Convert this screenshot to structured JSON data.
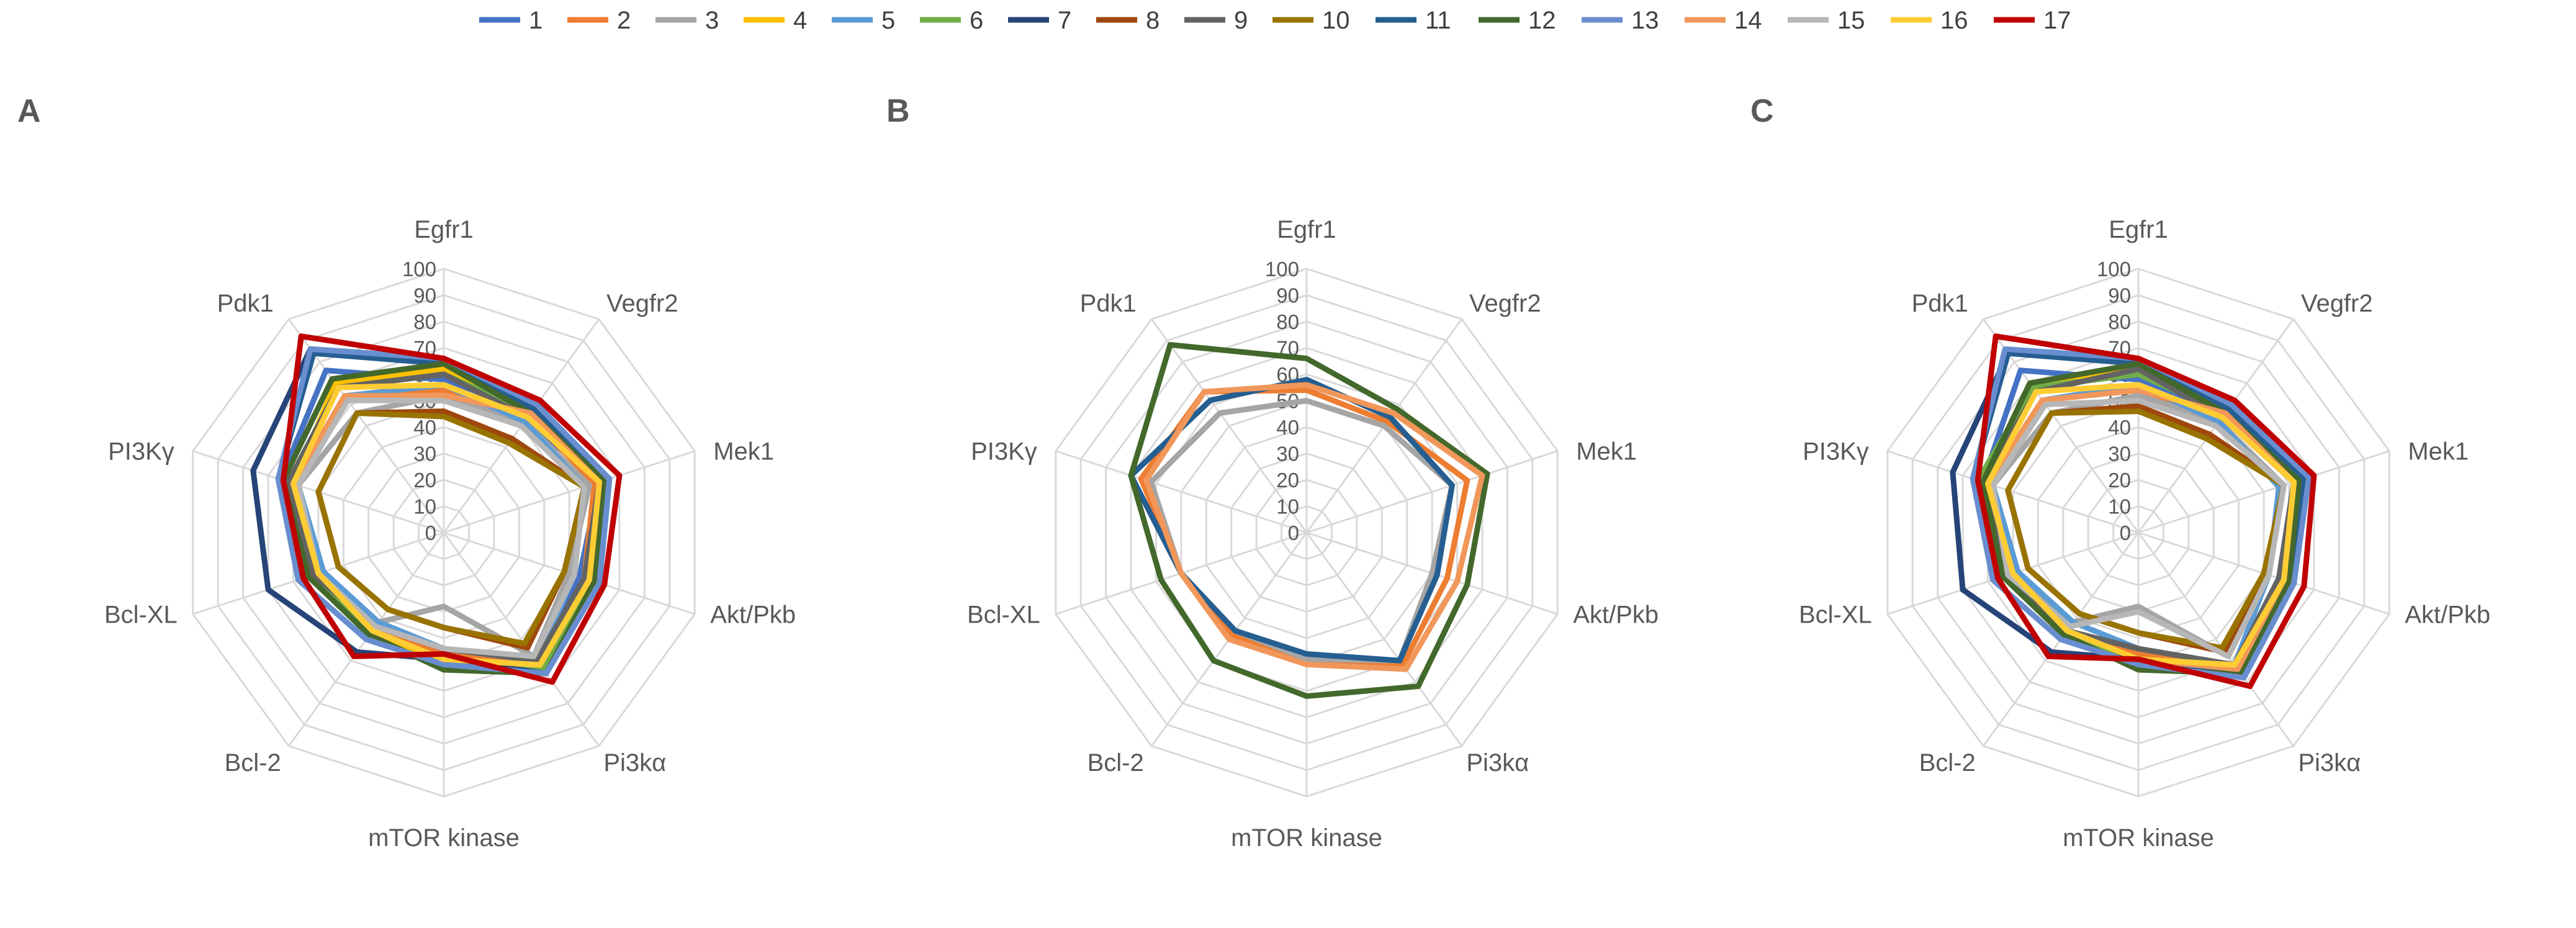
{
  "legend": {
    "entries": [
      {
        "label": "1",
        "color": "#4472C4"
      },
      {
        "label": "2",
        "color": "#ED7D31"
      },
      {
        "label": "3",
        "color": "#A5A5A5"
      },
      {
        "label": "4",
        "color": "#FFC000"
      },
      {
        "label": "5",
        "color": "#5B9BD5"
      },
      {
        "label": "6",
        "color": "#70AD47"
      },
      {
        "label": "7",
        "color": "#264478"
      },
      {
        "label": "8",
        "color": "#9E480E"
      },
      {
        "label": "9",
        "color": "#636363"
      },
      {
        "label": "10",
        "color": "#997300"
      },
      {
        "label": "11",
        "color": "#255E91"
      },
      {
        "label": "12",
        "color": "#43682B"
      },
      {
        "label": "13",
        "color": "#698ED0"
      },
      {
        "label": "14",
        "color": "#F1975A"
      },
      {
        "label": "15",
        "color": "#B7B7B7"
      },
      {
        "label": "16",
        "color": "#FFCD33"
      },
      {
        "label": "17",
        "color": "#C00000"
      }
    ]
  },
  "chart_data": [
    {
      "type": "radar",
      "panel": "A",
      "categories": [
        "Egfr1",
        "Vegfr2",
        "Mek1",
        "Akt/Pkb",
        "Pi3kα",
        "mTOR kinase",
        "Bcl-2",
        "Bcl-XL",
        "PI3Kγ",
        "Pdk1"
      ],
      "rlim": [
        0,
        100
      ],
      "ticks": [
        "0",
        "10",
        "20",
        "30",
        "40",
        "50",
        "60",
        "70",
        "80",
        "90",
        "100"
      ],
      "series": [
        {
          "name": "1",
          "values": [
            58,
            53,
            62,
            54,
            60,
            44,
            44,
            52,
            65,
            76
          ]
        },
        {
          "name": "2",
          "values": [
            54,
            55,
            60,
            56,
            62,
            46,
            46,
            48,
            62,
            62
          ]
        },
        {
          "name": "3",
          "values": [
            52,
            52,
            58,
            50,
            58,
            28,
            42,
            50,
            58,
            56
          ]
        },
        {
          "name": "4",
          "values": [
            62,
            58,
            66,
            60,
            64,
            50,
            46,
            50,
            60,
            70
          ]
        },
        {
          "name": "5",
          "values": [
            56,
            52,
            56,
            52,
            60,
            44,
            42,
            48,
            58,
            64
          ]
        },
        {
          "name": "6",
          "values": [
            60,
            56,
            62,
            58,
            64,
            52,
            48,
            52,
            62,
            68
          ]
        },
        {
          "name": "7",
          "values": [
            66,
            58,
            66,
            62,
            66,
            48,
            56,
            70,
            76,
            86
          ]
        },
        {
          "name": "8",
          "values": [
            46,
            44,
            56,
            48,
            54,
            36,
            36,
            42,
            50,
            56
          ]
        },
        {
          "name": "9",
          "values": [
            60,
            54,
            62,
            56,
            60,
            44,
            44,
            52,
            62,
            68
          ]
        },
        {
          "name": "10",
          "values": [
            44,
            42,
            56,
            48,
            52,
            36,
            36,
            42,
            50,
            56
          ]
        },
        {
          "name": "11",
          "values": [
            64,
            58,
            66,
            62,
            66,
            50,
            50,
            58,
            66,
            84
          ]
        },
        {
          "name": "12",
          "values": [
            64,
            56,
            64,
            60,
            66,
            52,
            48,
            54,
            64,
            72
          ]
        },
        {
          "name": "13",
          "values": [
            66,
            60,
            66,
            62,
            66,
            50,
            50,
            58,
            66,
            86
          ]
        },
        {
          "name": "14",
          "values": [
            52,
            56,
            62,
            58,
            62,
            48,
            46,
            50,
            60,
            64
          ]
        },
        {
          "name": "15",
          "values": [
            50,
            50,
            56,
            52,
            58,
            44,
            44,
            50,
            58,
            62
          ]
        },
        {
          "name": "16",
          "values": [
            56,
            54,
            62,
            58,
            62,
            48,
            46,
            50,
            60,
            68
          ]
        },
        {
          "name": "17",
          "values": [
            66,
            62,
            70,
            64,
            70,
            46,
            58,
            56,
            64,
            92
          ]
        }
      ]
    },
    {
      "type": "radar",
      "panel": "B",
      "categories": [
        "Egfr1",
        "Vegfr2",
        "Mek1",
        "Akt/Pkb",
        "Pi3kα",
        "mTOR kinase",
        "Bcl-2",
        "Bcl-XL",
        "PI3Kγ",
        "Pdk1"
      ],
      "rlim": [
        0,
        100
      ],
      "ticks": [
        "0",
        "10",
        "20",
        "30",
        "40",
        "50",
        "60",
        "70",
        "80",
        "90",
        "100"
      ],
      "series": [
        {
          "name": "2",
          "values": [
            54,
            52,
            64,
            56,
            62,
            50,
            48,
            50,
            66,
            66
          ]
        },
        {
          "name": "3",
          "values": [
            50,
            50,
            58,
            50,
            60,
            48,
            46,
            50,
            62,
            56
          ]
        },
        {
          "name": "11",
          "values": [
            58,
            54,
            58,
            52,
            60,
            46,
            46,
            50,
            70,
            62
          ]
        },
        {
          "name": "12",
          "values": [
            66,
            58,
            72,
            64,
            72,
            62,
            60,
            58,
            70,
            88
          ]
        },
        {
          "name": "14",
          "values": [
            56,
            56,
            70,
            60,
            64,
            50,
            50,
            50,
            64,
            66
          ]
        }
      ]
    },
    {
      "type": "radar",
      "panel": "C",
      "categories": [
        "Egfr1",
        "Vegfr2",
        "Mek1",
        "Akt/Pkb",
        "Pi3kα",
        "mTOR kinase",
        "Bcl-2",
        "Bcl-XL",
        "PI3Kγ",
        "Pdk1"
      ],
      "rlim": [
        0,
        100
      ],
      "ticks": [
        "0",
        "10",
        "20",
        "30",
        "40",
        "50",
        "60",
        "70",
        "80",
        "90",
        "100"
      ],
      "series": [
        {
          "name": "1",
          "values": [
            58,
            54,
            62,
            56,
            62,
            46,
            46,
            52,
            62,
            76
          ]
        },
        {
          "name": "2",
          "values": [
            54,
            54,
            62,
            58,
            64,
            46,
            46,
            50,
            60,
            62
          ]
        },
        {
          "name": "3",
          "values": [
            52,
            52,
            58,
            52,
            58,
            28,
            42,
            50,
            58,
            56
          ]
        },
        {
          "name": "4",
          "values": [
            62,
            58,
            66,
            62,
            66,
            50,
            48,
            52,
            62,
            70
          ]
        },
        {
          "name": "5",
          "values": [
            56,
            52,
            56,
            52,
            62,
            44,
            42,
            48,
            58,
            62
          ]
        },
        {
          "name": "6",
          "values": [
            60,
            56,
            62,
            58,
            64,
            50,
            48,
            54,
            64,
            68
          ]
        },
        {
          "name": "7",
          "values": [
            66,
            58,
            66,
            62,
            68,
            48,
            56,
            70,
            74,
            84
          ]
        },
        {
          "name": "8",
          "values": [
            48,
            46,
            58,
            50,
            56,
            38,
            38,
            44,
            52,
            56
          ]
        },
        {
          "name": "9",
          "values": [
            62,
            54,
            62,
            56,
            62,
            44,
            46,
            52,
            62,
            66
          ]
        },
        {
          "name": "10",
          "values": [
            46,
            44,
            58,
            50,
            54,
            38,
            38,
            44,
            52,
            56
          ]
        },
        {
          "name": "11",
          "values": [
            64,
            58,
            66,
            62,
            66,
            50,
            50,
            58,
            66,
            84
          ]
        },
        {
          "name": "12",
          "values": [
            64,
            56,
            64,
            60,
            66,
            52,
            48,
            54,
            62,
            70
          ]
        },
        {
          "name": "13",
          "values": [
            66,
            60,
            68,
            62,
            68,
            50,
            50,
            58,
            66,
            86
          ]
        },
        {
          "name": "14",
          "values": [
            54,
            56,
            62,
            58,
            64,
            48,
            46,
            50,
            60,
            62
          ]
        },
        {
          "name": "15",
          "values": [
            50,
            50,
            58,
            52,
            58,
            30,
            44,
            52,
            58,
            60
          ]
        },
        {
          "name": "16",
          "values": [
            56,
            54,
            62,
            58,
            62,
            48,
            46,
            50,
            60,
            66
          ]
        },
        {
          "name": "17",
          "values": [
            66,
            62,
            70,
            66,
            72,
            48,
            58,
            56,
            64,
            92
          ]
        }
      ]
    }
  ]
}
